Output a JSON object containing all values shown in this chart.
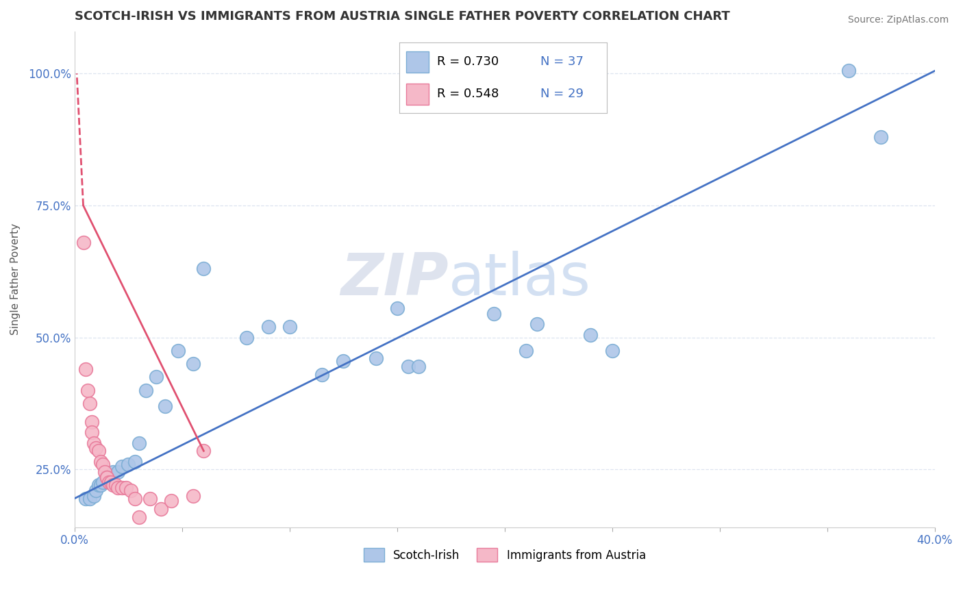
{
  "title": "SCOTCH-IRISH VS IMMIGRANTS FROM AUSTRIA SINGLE FATHER POVERTY CORRELATION CHART",
  "source": "Source: ZipAtlas.com",
  "ylabel": "Single Father Poverty",
  "xlim": [
    0.0,
    0.4
  ],
  "ylim": [
    0.14,
    1.08
  ],
  "x_ticks": [
    0.0,
    0.05,
    0.1,
    0.15,
    0.2,
    0.25,
    0.3,
    0.35,
    0.4
  ],
  "x_tick_labels": [
    "0.0%",
    "",
    "",
    "",
    "",
    "",
    "",
    "",
    "40.0%"
  ],
  "y_ticks": [
    0.25,
    0.5,
    0.75,
    1.0
  ],
  "y_tick_labels": [
    "25.0%",
    "50.0%",
    "75.0%",
    "100.0%"
  ],
  "legend_r1": "R = 0.730",
  "legend_n1": "N = 37",
  "legend_r2": "R = 0.548",
  "legend_n2": "N = 29",
  "series1_name": "Scotch-Irish",
  "series2_name": "Immigrants from Austria",
  "series1_color": "#aec6e8",
  "series2_color": "#f5b8c8",
  "series1_edge_color": "#7badd4",
  "series2_edge_color": "#e87a9a",
  "trend1_color": "#4472c4",
  "trend2_color": "#e05070",
  "watermark_zip": "ZIP",
  "watermark_atlas": "atlas",
  "blue_scatter_x": [
    0.005,
    0.007,
    0.009,
    0.01,
    0.011,
    0.012,
    0.013,
    0.015,
    0.017,
    0.018,
    0.02,
    0.022,
    0.025,
    0.028,
    0.03,
    0.033,
    0.038,
    0.042,
    0.048,
    0.055,
    0.06,
    0.08,
    0.09,
    0.1,
    0.115,
    0.125,
    0.14,
    0.15,
    0.155,
    0.16,
    0.195,
    0.21,
    0.215,
    0.24,
    0.25,
    0.36,
    0.375
  ],
  "blue_scatter_y": [
    0.195,
    0.195,
    0.2,
    0.21,
    0.22,
    0.22,
    0.225,
    0.24,
    0.225,
    0.245,
    0.245,
    0.255,
    0.26,
    0.265,
    0.3,
    0.4,
    0.425,
    0.37,
    0.475,
    0.45,
    0.63,
    0.5,
    0.52,
    0.52,
    0.43,
    0.455,
    0.46,
    0.555,
    0.445,
    0.445,
    0.545,
    0.475,
    0.525,
    0.505,
    0.475,
    1.005,
    0.88
  ],
  "pink_scatter_x": [
    0.004,
    0.005,
    0.006,
    0.007,
    0.008,
    0.008,
    0.009,
    0.01,
    0.011,
    0.012,
    0.013,
    0.014,
    0.015,
    0.015,
    0.016,
    0.017,
    0.018,
    0.019,
    0.02,
    0.022,
    0.024,
    0.026,
    0.028,
    0.03,
    0.035,
    0.04,
    0.045,
    0.055,
    0.06
  ],
  "pink_scatter_y": [
    0.68,
    0.44,
    0.4,
    0.375,
    0.34,
    0.32,
    0.3,
    0.29,
    0.285,
    0.265,
    0.26,
    0.245,
    0.235,
    0.235,
    0.225,
    0.225,
    0.22,
    0.22,
    0.215,
    0.215,
    0.215,
    0.21,
    0.195,
    0.16,
    0.195,
    0.175,
    0.19,
    0.2,
    0.285
  ],
  "blue_trend_x0": 0.0,
  "blue_trend_y0": 0.195,
  "blue_trend_x1": 0.4,
  "blue_trend_y1": 1.005,
  "pink_trend_solid_x0": 0.06,
  "pink_trend_solid_y0": 0.285,
  "pink_trend_solid_x1": 0.004,
  "pink_trend_solid_y1": 0.75,
  "pink_trend_dashed_x0": 0.004,
  "pink_trend_dashed_y0": 0.75,
  "pink_trend_dashed_x1": 0.001,
  "pink_trend_dashed_y1": 1.0
}
